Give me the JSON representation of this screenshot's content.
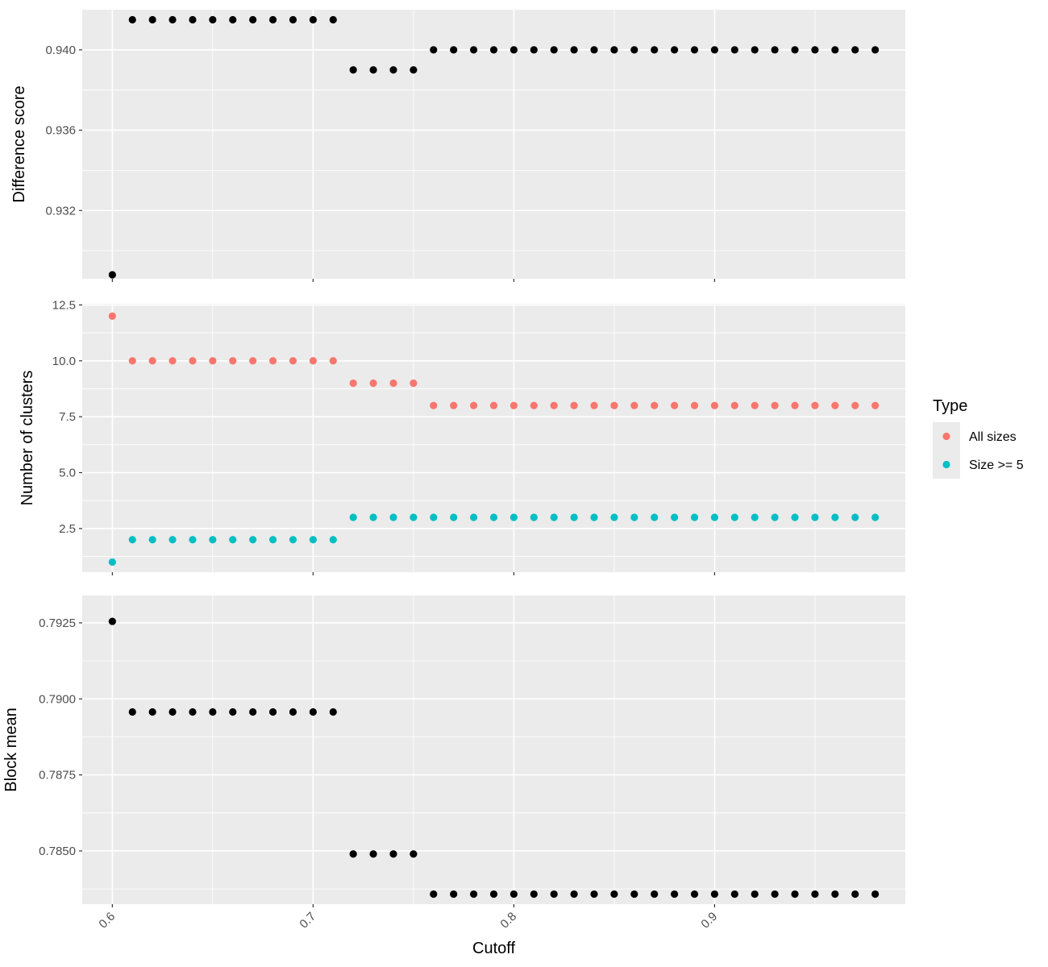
{
  "chart_data": [
    {
      "type": "scatter",
      "panel": "top",
      "ylabel": "Difference score",
      "xlim": [
        0.585,
        0.995
      ],
      "ylim": [
        0.9286,
        0.942
      ],
      "y_ticks": [
        0.932,
        0.936,
        0.94
      ],
      "y_tick_labels": [
        "0.932",
        "0.936",
        "0.940"
      ],
      "series": [
        {
          "color": "#000000",
          "x": [
            0.6,
            0.61,
            0.62,
            0.63,
            0.64,
            0.65,
            0.66,
            0.67,
            0.68,
            0.69,
            0.7,
            0.71,
            0.72,
            0.73,
            0.74,
            0.75,
            0.76,
            0.77,
            0.78,
            0.79,
            0.8,
            0.81,
            0.82,
            0.83,
            0.84,
            0.85,
            0.86,
            0.87,
            0.88,
            0.89,
            0.9,
            0.91,
            0.92,
            0.93,
            0.94,
            0.95,
            0.96,
            0.97,
            0.98
          ],
          "values": [
            0.9288,
            0.9415,
            0.9415,
            0.9415,
            0.9415,
            0.9415,
            0.9415,
            0.9415,
            0.9415,
            0.9415,
            0.9415,
            0.9415,
            0.939,
            0.939,
            0.939,
            0.939,
            0.94,
            0.94,
            0.94,
            0.94,
            0.94,
            0.94,
            0.94,
            0.94,
            0.94,
            0.94,
            0.94,
            0.94,
            0.94,
            0.94,
            0.94,
            0.94,
            0.94,
            0.94,
            0.94,
            0.94,
            0.94,
            0.94,
            0.94
          ]
        }
      ]
    },
    {
      "type": "scatter",
      "panel": "middle",
      "ylabel": "Number of clusters",
      "xlim": [
        0.585,
        0.995
      ],
      "ylim": [
        0.55,
        12.55
      ],
      "y_ticks": [
        2.5,
        5.0,
        7.5,
        10.0,
        12.5
      ],
      "y_tick_labels": [
        "2.5",
        "5.0",
        "7.5",
        "10.0",
        "12.5"
      ],
      "series": [
        {
          "name": "All sizes",
          "color": "#F8766D",
          "x": [
            0.6,
            0.61,
            0.62,
            0.63,
            0.64,
            0.65,
            0.66,
            0.67,
            0.68,
            0.69,
            0.7,
            0.71,
            0.72,
            0.73,
            0.74,
            0.75,
            0.76,
            0.77,
            0.78,
            0.79,
            0.8,
            0.81,
            0.82,
            0.83,
            0.84,
            0.85,
            0.86,
            0.87,
            0.88,
            0.89,
            0.9,
            0.91,
            0.92,
            0.93,
            0.94,
            0.95,
            0.96,
            0.97,
            0.98
          ],
          "values": [
            12,
            10,
            10,
            10,
            10,
            10,
            10,
            10,
            10,
            10,
            10,
            10,
            9,
            9,
            9,
            9,
            8,
            8,
            8,
            8,
            8,
            8,
            8,
            8,
            8,
            8,
            8,
            8,
            8,
            8,
            8,
            8,
            8,
            8,
            8,
            8,
            8,
            8,
            8
          ]
        },
        {
          "name": "Size >= 5",
          "color": "#00BFC4",
          "x": [
            0.6,
            0.61,
            0.62,
            0.63,
            0.64,
            0.65,
            0.66,
            0.67,
            0.68,
            0.69,
            0.7,
            0.71,
            0.72,
            0.73,
            0.74,
            0.75,
            0.76,
            0.77,
            0.78,
            0.79,
            0.8,
            0.81,
            0.82,
            0.83,
            0.84,
            0.85,
            0.86,
            0.87,
            0.88,
            0.89,
            0.9,
            0.91,
            0.92,
            0.93,
            0.94,
            0.95,
            0.96,
            0.97,
            0.98
          ],
          "values": [
            1,
            2,
            2,
            2,
            2,
            2,
            2,
            2,
            2,
            2,
            2,
            2,
            3,
            3,
            3,
            3,
            3,
            3,
            3,
            3,
            3,
            3,
            3,
            3,
            3,
            3,
            3,
            3,
            3,
            3,
            3,
            3,
            3,
            3,
            3,
            3,
            3,
            3,
            3
          ]
        }
      ]
    },
    {
      "type": "scatter",
      "panel": "bottom",
      "ylabel": "Block mean",
      "xlabel": "Cutoff",
      "xlim": [
        0.585,
        0.995
      ],
      "ylim": [
        0.78325,
        0.7934
      ],
      "x_ticks": [
        0.6,
        0.7,
        0.8,
        0.9
      ],
      "x_tick_labels": [
        "0.6",
        "0.7",
        "0.8",
        "0.9"
      ],
      "y_ticks": [
        0.785,
        0.7875,
        0.79,
        0.7925
      ],
      "y_tick_labels": [
        "0.7850",
        "0.7875",
        "0.7900",
        "0.7925"
      ],
      "series": [
        {
          "color": "#000000",
          "x": [
            0.6,
            0.61,
            0.62,
            0.63,
            0.64,
            0.65,
            0.66,
            0.67,
            0.68,
            0.69,
            0.7,
            0.71,
            0.72,
            0.73,
            0.74,
            0.75,
            0.76,
            0.77,
            0.78,
            0.79,
            0.8,
            0.81,
            0.82,
            0.83,
            0.84,
            0.85,
            0.86,
            0.87,
            0.88,
            0.89,
            0.9,
            0.91,
            0.92,
            0.93,
            0.94,
            0.95,
            0.96,
            0.97,
            0.98
          ],
          "values": [
            0.79255,
            0.78957,
            0.78957,
            0.78957,
            0.78957,
            0.78957,
            0.78957,
            0.78957,
            0.78957,
            0.78957,
            0.78957,
            0.78957,
            0.7849,
            0.7849,
            0.7849,
            0.7849,
            0.78358,
            0.78358,
            0.78358,
            0.78358,
            0.78358,
            0.78358,
            0.78358,
            0.78358,
            0.78358,
            0.78358,
            0.78358,
            0.78358,
            0.78358,
            0.78358,
            0.78358,
            0.78358,
            0.78358,
            0.78358,
            0.78358,
            0.78358,
            0.78358,
            0.78358,
            0.78358
          ]
        }
      ]
    }
  ],
  "legend": {
    "title": "Type",
    "placement": "right",
    "items": [
      {
        "label": "All sizes",
        "color": "#F8766D"
      },
      {
        "label": "Size >= 5",
        "color": "#00BFC4"
      }
    ]
  },
  "grid": true,
  "panel_background": "#EBEBEB"
}
